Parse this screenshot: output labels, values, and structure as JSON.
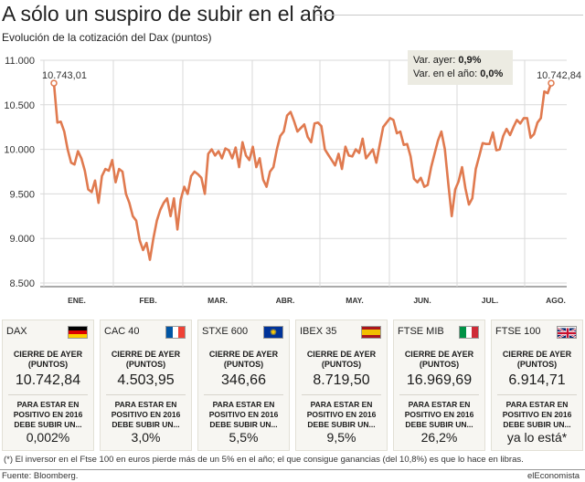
{
  "header": {
    "title": "A sólo un suspiro de subir en el año",
    "subtitle": "Evolución de la cotización del Dax (puntos)"
  },
  "infobox": {
    "line1_label": "Var. ayer:",
    "line1_value": "0,9%",
    "line2_label": "Var. en el año:",
    "line2_value": "0,0%"
  },
  "chart_data": {
    "type": "line",
    "title": "Evolución de la cotización del Dax (puntos)",
    "ylim": [
      8500,
      11000
    ],
    "y_ticks": [
      11000,
      10500,
      10000,
      9500,
      9000,
      8500
    ],
    "y_tick_labels": [
      "11.000",
      "10.500",
      "10.000",
      "9.500",
      "9.000",
      "8.500"
    ],
    "x_tick_labels": [
      "ENE.",
      "FEB.",
      "MAR.",
      "ABR.",
      "MAY.",
      "JUN.",
      "JUL.",
      "AGO."
    ],
    "grid": true,
    "line_color": "#e07a4f",
    "start_label": "10.743,01",
    "end_label": "10.742,84",
    "series": [
      {
        "values": [
          10743,
          10300,
          10310,
          10200,
          10000,
          9850,
          9830,
          9980,
          9900,
          9760,
          9550,
          9520,
          9650,
          9400,
          9700,
          9780,
          9760,
          9880,
          9630,
          9780,
          9750,
          9500,
          9400,
          9250,
          9200,
          8980,
          8870,
          8950,
          8760,
          9000,
          9200,
          9320,
          9400,
          9450,
          9250,
          9450,
          9100,
          9440,
          9580,
          9500,
          9700,
          9750,
          9720,
          9680,
          9500,
          9950,
          10000,
          9930,
          9980,
          9900,
          10010,
          9990,
          9900,
          10020,
          9800,
          10080,
          9930,
          9880,
          10030,
          9800,
          9900,
          9660,
          9580,
          9750,
          9800,
          10000,
          10150,
          10200,
          10380,
          10420,
          10320,
          10200,
          10240,
          10280,
          10140,
          10080,
          10290,
          10300,
          10260,
          10000,
          9940,
          9880,
          9820,
          9950,
          9780,
          10030,
          9930,
          9920,
          10000,
          9960,
          10120,
          9900,
          9950,
          10000,
          9850,
          10050,
          10250,
          10300,
          10350,
          10330,
          10180,
          10200,
          10050,
          10060,
          9920,
          9670,
          9630,
          9680,
          9580,
          9600,
          9800,
          9950,
          10100,
          10200,
          10000,
          9620,
          9250,
          9550,
          9640,
          9800,
          9560,
          9380,
          9450,
          9780,
          9920,
          10070,
          10060,
          10060,
          10190,
          9990,
          10000,
          10150,
          10230,
          10160,
          10250,
          10330,
          10290,
          10350,
          10350,
          10130,
          10170,
          10300,
          10350,
          10650,
          10630,
          10743
        ]
      }
    ]
  },
  "cards": [
    {
      "name": "DAX",
      "flag": "de",
      "hdr": "CIERRE DE AYER (PUNTOS)",
      "value": "10.742,84",
      "hdr2": "PARA ESTAR EN POSITIVO EN 2016 DEBE SUBIR UN...",
      "pct": "0,002%"
    },
    {
      "name": "CAC 40",
      "flag": "fr",
      "hdr": "CIERRE DE AYER (PUNTOS)",
      "value": "4.503,95",
      "hdr2": "PARA ESTAR EN POSITIVO EN 2016 DEBE SUBIR UN...",
      "pct": "3,0%"
    },
    {
      "name": "STXE 600",
      "flag": "eu",
      "hdr": "CIERRE DE AYER (PUNTOS)",
      "value": "346,66",
      "hdr2": "PARA ESTAR EN POSITIVO EN 2016 DEBE SUBIR UN...",
      "pct": "5,5%"
    },
    {
      "name": "IBEX 35",
      "flag": "es",
      "hdr": "CIERRE DE AYER (PUNTOS)",
      "value": "8.719,50",
      "hdr2": "PARA ESTAR EN POSITIVO EN 2016 DEBE SUBIR UN...",
      "pct": "9,5%"
    },
    {
      "name": "FTSE MIB",
      "flag": "it",
      "hdr": "CIERRE DE AYER (PUNTOS)",
      "value": "16.969,69",
      "hdr2": "PARA ESTAR EN POSITIVO EN 2016 DEBE SUBIR UN...",
      "pct": "26,2%"
    },
    {
      "name": "FTSE 100",
      "flag": "uk",
      "hdr": "CIERRE DE AYER (PUNTOS)",
      "value": "6.914,71",
      "hdr2": "PARA ESTAR EN POSITIVO EN 2016 DEBE SUBIR UN...",
      "pct": "ya lo está*"
    }
  ],
  "footer": {
    "footnote": "(*) El inversor en el Ftse 100 en euros pierde más de un 5% en el año; el que consigue ganancias (del 10,8%) es que lo hace en libras.",
    "source": "Fuente: Bloomberg.",
    "brand": "elEconomista"
  }
}
